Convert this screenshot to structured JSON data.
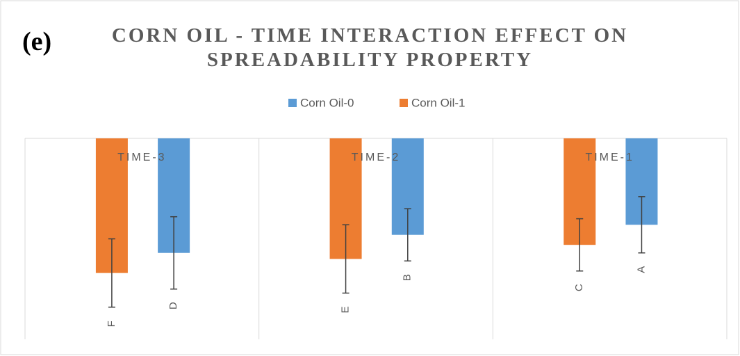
{
  "chart_data": {
    "type": "bar",
    "panel_label": "(e)",
    "title": "CORN OIL - TIME INTERACTION EFFECT ON SPREADABILITY PROPERTY",
    "categories": [
      "TIME-3",
      "TIME-2",
      "TIME-1"
    ],
    "series": [
      {
        "name": "Corn Oil-0",
        "color": "#5b9bd5",
        "values": [
          57,
          48,
          43
        ],
        "errors": [
          18,
          13,
          14
        ],
        "letters": [
          "D",
          "B",
          "A"
        ]
      },
      {
        "name": "Corn Oil-1",
        "color": "#ed7d31",
        "values": [
          67,
          60,
          53
        ],
        "errors": [
          17,
          17,
          13
        ],
        "letters": [
          "F",
          "E",
          "C"
        ]
      }
    ],
    "ylim": [
      0,
      100
    ],
    "y_reversed": true,
    "legend": "top",
    "error_color": "#404040"
  }
}
